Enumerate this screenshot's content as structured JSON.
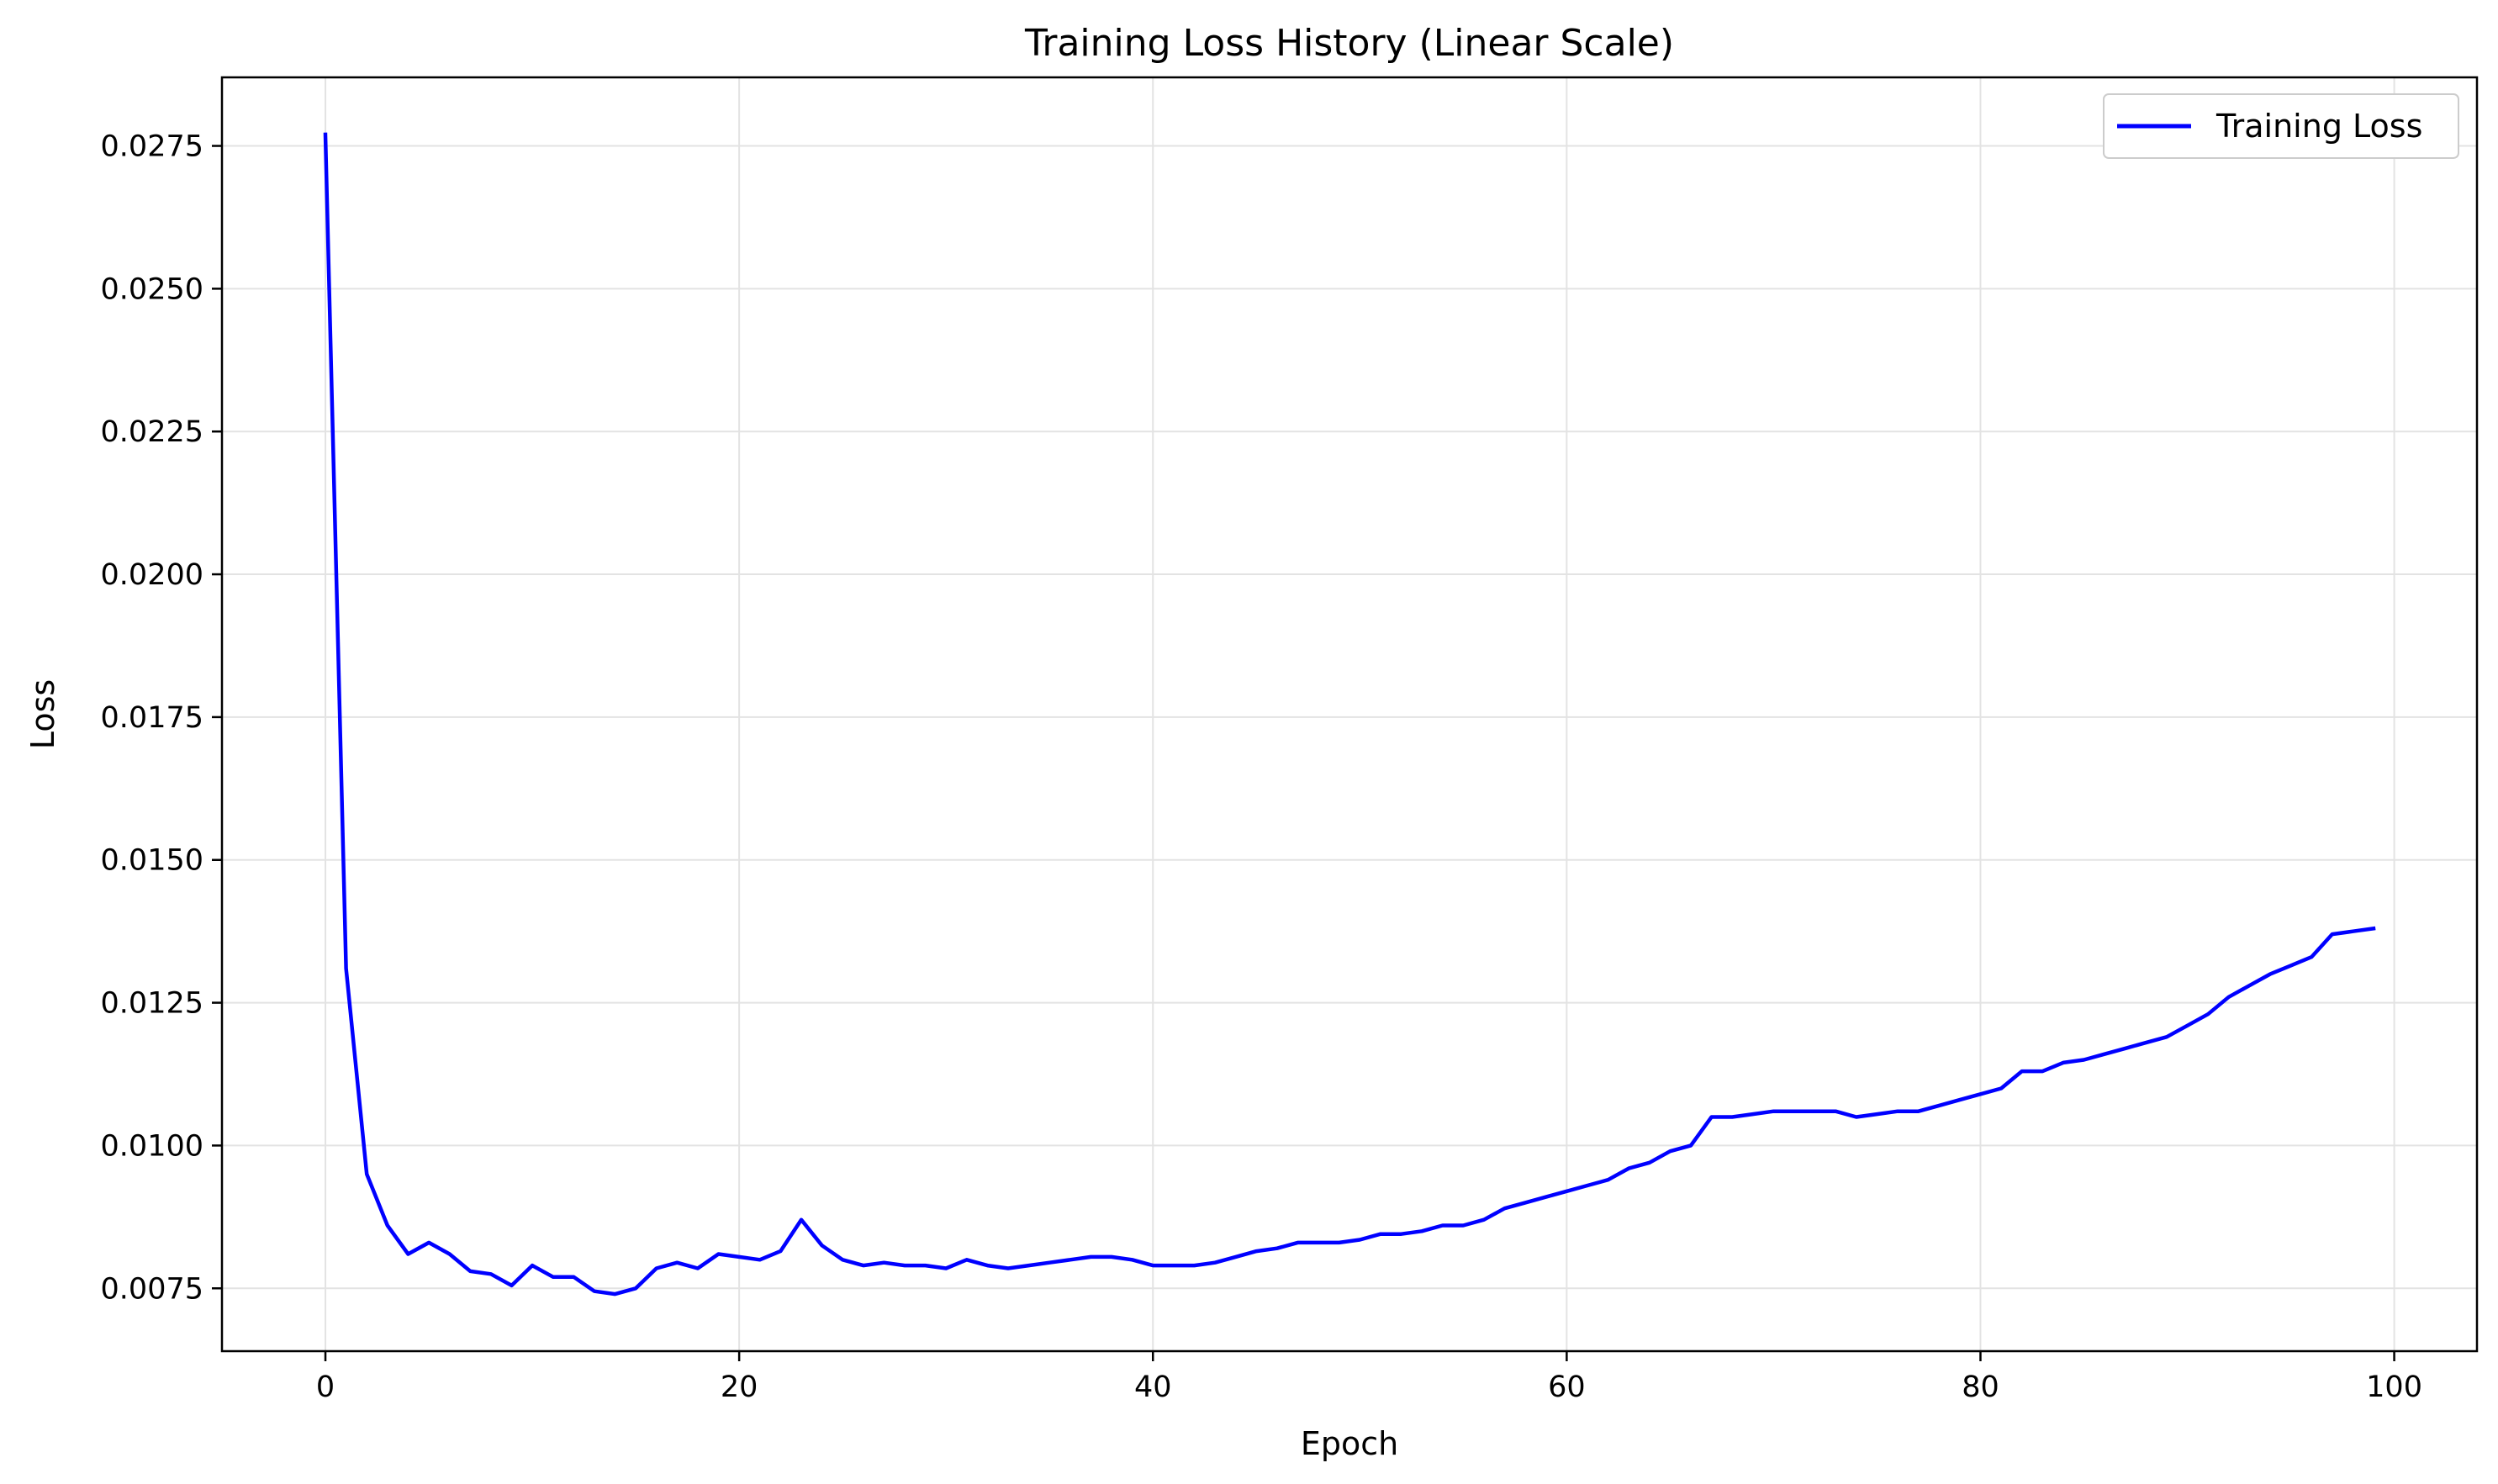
{
  "chart_data": {
    "type": "line",
    "title": "Training Loss History (Linear Scale)",
    "xlabel": "Epoch",
    "ylabel": "Loss",
    "xlim": [
      -5,
      104
    ],
    "ylim": [
      0.0064,
      0.0287
    ],
    "x_ticks": [
      0,
      20,
      40,
      60,
      80,
      100
    ],
    "x_tick_labels": [
      "0",
      "20",
      "40",
      "60",
      "80",
      "100"
    ],
    "y_ticks": [
      0.0075,
      0.01,
      0.0125,
      0.015,
      0.0175,
      0.02,
      0.0225,
      0.025,
      0.0275
    ],
    "y_tick_labels": [
      "0.0075",
      "0.0100",
      "0.0125",
      "0.0150",
      "0.0175",
      "0.0200",
      "0.0225",
      "0.0250",
      "0.0275"
    ],
    "grid": true,
    "legend_position": "top-right",
    "series": [
      {
        "name": "Training Loss",
        "color": "#0000ff",
        "x": [
          0,
          1,
          2,
          3,
          4,
          5,
          6,
          7,
          8,
          9,
          10,
          11,
          12,
          13,
          14,
          15,
          16,
          17,
          18,
          19,
          20,
          21,
          22,
          23,
          24,
          25,
          26,
          27,
          28,
          29,
          30,
          31,
          32,
          33,
          34,
          35,
          36,
          37,
          38,
          39,
          40,
          41,
          42,
          43,
          44,
          45,
          46,
          47,
          48,
          49,
          50,
          51,
          52,
          53,
          54,
          55,
          56,
          57,
          58,
          59,
          60,
          61,
          62,
          63,
          64,
          65,
          66,
          67,
          68,
          69,
          70,
          71,
          72,
          73,
          74,
          75,
          76,
          77,
          78,
          79,
          80,
          81,
          82,
          83,
          84,
          85,
          86,
          87,
          88,
          89,
          90,
          91,
          92,
          93,
          94,
          95,
          96,
          97,
          98,
          99
        ],
        "values": [
          0.0277,
          0.0131,
          0.0095,
          0.0086,
          0.0081,
          0.0083,
          0.0081,
          0.0078,
          0.00775,
          0.00755,
          0.0079,
          0.0077,
          0.0077,
          0.00745,
          0.0074,
          0.0075,
          0.00785,
          0.00795,
          0.00785,
          0.0081,
          0.00805,
          0.008,
          0.00815,
          0.0087,
          0.00825,
          0.008,
          0.0079,
          0.00795,
          0.0079,
          0.0079,
          0.00785,
          0.008,
          0.0079,
          0.00785,
          0.0079,
          0.00795,
          0.008,
          0.00805,
          0.00805,
          0.008,
          0.0079,
          0.0079,
          0.0079,
          0.00795,
          0.00805,
          0.00815,
          0.0082,
          0.0083,
          0.0083,
          0.0083,
          0.00835,
          0.00845,
          0.00845,
          0.0085,
          0.0086,
          0.0086,
          0.0087,
          0.0089,
          0.009,
          0.0091,
          0.0092,
          0.0093,
          0.0094,
          0.0096,
          0.0097,
          0.0099,
          0.01,
          0.0105,
          0.0105,
          0.01055,
          0.0106,
          0.0106,
          0.0106,
          0.0106,
          0.0105,
          0.01055,
          0.0106,
          0.0106,
          0.0107,
          0.0108,
          0.0109,
          0.011,
          0.0113,
          0.0113,
          0.01145,
          0.0115,
          0.0116,
          0.0117,
          0.0118,
          0.0119,
          0.0121,
          0.0123,
          0.0126,
          0.0128,
          0.013,
          0.01315,
          0.0133,
          0.0137,
          0.01375,
          0.0138
        ]
      }
    ]
  }
}
